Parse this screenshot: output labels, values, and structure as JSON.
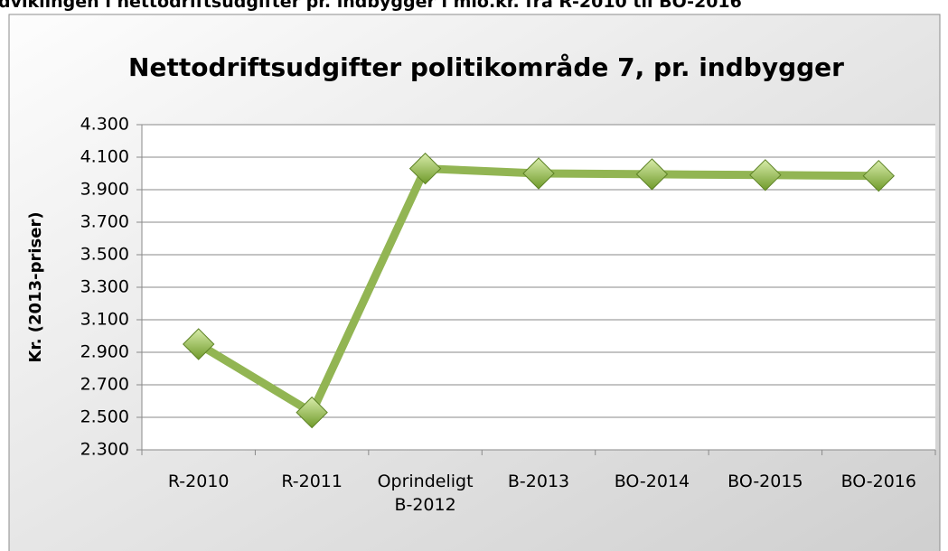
{
  "caption": "dviklingen i nettodriftsudgifter pr. indbygger i mio.kr. fra R-2010 til BO-2016",
  "chart_data": {
    "type": "line",
    "title": "Nettodriftsudgifter politikområde 7, pr. indbygger",
    "y_label": "Kr. (2013-priser)",
    "categories": [
      "R-2010",
      "R-2011",
      "Oprindeligt B-2012",
      "B-2013",
      "BO-2014",
      "BO-2015",
      "BO-2016"
    ],
    "series": [
      {
        "name": "Nettodriftsudgifter",
        "color": "#92b553",
        "values": [
          2950,
          2530,
          4030,
          4000,
          3995,
          3990,
          3985
        ]
      }
    ],
    "ylim": [
      2300,
      4300
    ],
    "yticks": [
      {
        "value": 2300,
        "label": "2.300"
      },
      {
        "value": 2500,
        "label": "2.500"
      },
      {
        "value": 2700,
        "label": "2.700"
      },
      {
        "value": 2900,
        "label": "2.900"
      },
      {
        "value": 3100,
        "label": "3.100"
      },
      {
        "value": 3300,
        "label": "3.300"
      },
      {
        "value": 3500,
        "label": "3.500"
      },
      {
        "value": 3700,
        "label": "3.700"
      },
      {
        "value": 3900,
        "label": "3.900"
      },
      {
        "value": 4100,
        "label": "4.100"
      },
      {
        "value": 4300,
        "label": "4.300"
      }
    ],
    "grid": true
  }
}
